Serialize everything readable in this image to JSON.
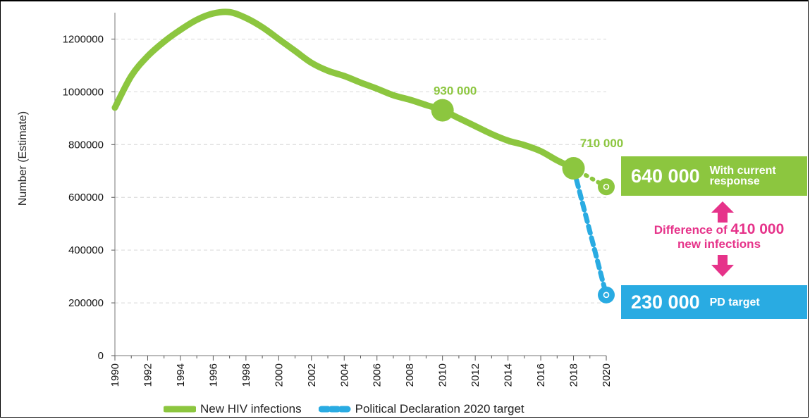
{
  "chart_data": {
    "type": "line",
    "title": "",
    "ylabel": "Number (Estimate)",
    "xlabel": "",
    "ylim": [
      0,
      1300000
    ],
    "yticks": [
      "0",
      "200000",
      "400000",
      "600000",
      "800000",
      "1000000",
      "1200000"
    ],
    "ytick_values": [
      0,
      200000,
      400000,
      600000,
      800000,
      1000000,
      1200000
    ],
    "xticks": [
      "1990",
      "1992",
      "1994",
      "1996",
      "1998",
      "2000",
      "2002",
      "2004",
      "2006",
      "2008",
      "2010",
      "2012",
      "2014",
      "2016",
      "2018",
      "2020"
    ],
    "xlim": [
      1990,
      2020
    ],
    "grid": "horizontal-dashed",
    "legend_position": "bottom",
    "series": [
      {
        "name": "New HIV infections",
        "color": "#8cc63f",
        "style": "solid",
        "x": [
          1990,
          1991,
          1992,
          1993,
          1994,
          1995,
          1996,
          1997,
          1998,
          1999,
          2000,
          2001,
          2002,
          2003,
          2004,
          2005,
          2006,
          2007,
          2008,
          2009,
          2010,
          2011,
          2012,
          2013,
          2014,
          2015,
          2016,
          2017,
          2018
        ],
        "values": [
          940000,
          1060000,
          1135000,
          1190000,
          1235000,
          1273000,
          1297000,
          1302000,
          1280000,
          1245000,
          1200000,
          1155000,
          1110000,
          1080000,
          1060000,
          1035000,
          1012000,
          987000,
          970000,
          950000,
          930000,
          900000,
          870000,
          840000,
          815000,
          798000,
          775000,
          740000,
          710000
        ]
      },
      {
        "name": "With current response",
        "color": "#8cc63f",
        "style": "dotted",
        "x": [
          2018,
          2020
        ],
        "values": [
          710000,
          640000
        ]
      },
      {
        "name": "Political Declaration 2020 target",
        "color": "#29abe2",
        "style": "dashed",
        "x": [
          2018,
          2020
        ],
        "values": [
          710000,
          230000
        ]
      }
    ],
    "annotations": [
      {
        "x": 2010,
        "y": 930000,
        "label": "930 000"
      },
      {
        "x": 2018,
        "y": 710000,
        "label": "710 000"
      }
    ]
  },
  "boxes": {
    "current": {
      "value": "640 000",
      "label": "With current response"
    },
    "target": {
      "value": "230 000",
      "label": "PD target"
    }
  },
  "difference": {
    "prefix": "Difference of ",
    "value": "410 000",
    "suffix": "new infections"
  },
  "legend": {
    "item1": "New HIV infections",
    "item2": "Political Declaration 2020 target"
  },
  "colors": {
    "green": "#8cc63f",
    "blue": "#29abe2",
    "pink": "#e6338a"
  }
}
